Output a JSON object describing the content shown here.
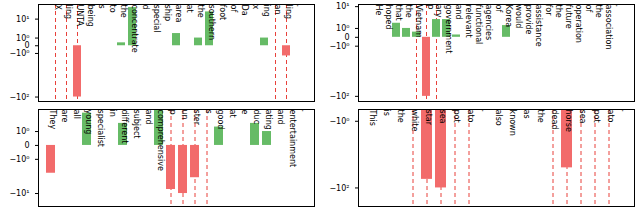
{
  "chart_data": [
    {
      "type": "bar",
      "log": "y",
      "categories": [
        "X",
        "ling",
        "UNTA",
        "being",
        "s",
        "to",
        "the",
        "concentrate",
        "d",
        "special",
        "ship",
        "area",
        "at",
        "the",
        "southern",
        "foot",
        "of",
        "Da",
        "x",
        "ing",
        "an",
        "ling",
        "."
      ],
      "values": [
        0,
        0,
        -100,
        0,
        0,
        0,
        0.3,
        30,
        0,
        0,
        0,
        2,
        0,
        1,
        20,
        0,
        0,
        0,
        0,
        1,
        0,
        -1.5,
        0
      ],
      "colors": [
        "#66bb66",
        "#66bb66",
        "#f26b6b",
        "#66bb66",
        "#66bb66",
        "#66bb66",
        "#66bb66",
        "#66bb66",
        "#66bb66",
        "#66bb66",
        "#66bb66",
        "#66bb66",
        "#66bb66",
        "#66bb66",
        "#66bb66",
        "#66bb66",
        "#66bb66",
        "#66bb66",
        "#66bb66",
        "#66bb66",
        "#66bb66",
        "#f26b6b",
        "#66bb66"
      ],
      "marked": [
        true,
        true,
        true,
        false,
        false,
        false,
        false,
        false,
        false,
        false,
        false,
        false,
        false,
        false,
        false,
        false,
        false,
        false,
        false,
        false,
        true,
        true,
        false
      ],
      "ylim": [
        -150,
        40
      ],
      "yticks": [
        {
          "value": -100,
          "label": "−10²"
        },
        {
          "value": -1,
          "label": "−10⁰"
        },
        0,
        {
          "value": 1,
          "label": "10⁰"
        },
        {
          "value": 10,
          "label": "10¹"
        }
      ]
    },
    {
      "type": "bar",
      "log": "y",
      "categories": [
        "He",
        "hoped",
        "that",
        "the",
        "Vietnam",
        "P",
        "ary",
        "government",
        "and",
        "relevant",
        "functional",
        "agencies",
        "of",
        "Korea",
        "would",
        "provide",
        "assistance",
        "for",
        "the",
        "future",
        "operation",
        "of",
        "the",
        "association",
        "."
      ],
      "values": [
        0,
        0,
        2,
        1,
        0.5,
        -100,
        3,
        3,
        0.2,
        0,
        0,
        0,
        0,
        1.5,
        0,
        0,
        0,
        0,
        0,
        0,
        0,
        0,
        0,
        0,
        0
      ],
      "colors": [
        "#66bb66",
        "#66bb66",
        "#66bb66",
        "#66bb66",
        "#66bb66",
        "#f26b6b",
        "#66bb66",
        "#66bb66",
        "#66bb66",
        "#66bb66",
        "#66bb66",
        "#66bb66",
        "#66bb66",
        "#66bb66",
        "#66bb66",
        "#66bb66",
        "#66bb66",
        "#66bb66",
        "#66bb66",
        "#66bb66",
        "#66bb66",
        "#66bb66",
        "#66bb66",
        "#66bb66",
        "#66bb66"
      ],
      "marked": [
        false,
        false,
        false,
        false,
        true,
        true,
        true,
        false,
        false,
        false,
        false,
        false,
        false,
        false,
        false,
        false,
        false,
        false,
        false,
        false,
        false,
        false,
        false,
        false,
        false
      ],
      "ylim": [
        -150,
        12
      ],
      "yticks": [
        {
          "value": -100,
          "label": "−10²"
        },
        {
          "value": -1,
          "label": "−10⁰"
        },
        0,
        {
          "value": 1,
          "label": "10⁰"
        },
        {
          "value": 10,
          "label": "10¹"
        }
      ]
    },
    {
      "type": "bar",
      "log": "y",
      "categories": [
        "They",
        "are",
        "all",
        "young",
        "specialist",
        "in",
        "different",
        "subject",
        "and",
        "comprehensive",
        "p",
        "un",
        "ster",
        "s",
        "good",
        "at",
        "e",
        "duc",
        "ating",
        "and",
        "entertainment",
        "."
      ],
      "values": [
        -3,
        0,
        0,
        4,
        0,
        0,
        2,
        0,
        0,
        5,
        -8,
        -10,
        -4,
        0,
        1.5,
        0,
        0,
        2,
        1,
        0,
        0,
        0
      ],
      "colors": [
        "#f26b6b",
        "#66bb66",
        "#66bb66",
        "#66bb66",
        "#66bb66",
        "#66bb66",
        "#66bb66",
        "#66bb66",
        "#66bb66",
        "#66bb66",
        "#f26b6b",
        "#f26b6b",
        "#f26b6b",
        "#66bb66",
        "#66bb66",
        "#66bb66",
        "#66bb66",
        "#66bb66",
        "#66bb66",
        "#66bb66",
        "#66bb66",
        "#66bb66"
      ],
      "marked": [
        false,
        false,
        false,
        false,
        false,
        false,
        false,
        false,
        false,
        false,
        true,
        true,
        true,
        true,
        false,
        false,
        false,
        false,
        false,
        false,
        false,
        false
      ],
      "ylim": [
        -20,
        5
      ],
      "yticks": [
        {
          "value": -10,
          "label": "−10¹"
        },
        {
          "value": -1,
          "label": "−10⁰"
        },
        0,
        {
          "value": 1,
          "label": "10⁰"
        }
      ]
    },
    {
      "type": "bar",
      "log": "y",
      "categories": [
        "This",
        "is",
        "the",
        "white",
        "star",
        "sea",
        "pot",
        "ato",
        ".",
        "also",
        "known",
        "as",
        "the",
        "dead",
        "horse",
        "sea",
        "pot",
        "ato",
        "."
      ],
      "values": [
        0,
        0,
        0,
        0,
        -60,
        -100,
        0,
        0,
        0,
        0,
        0,
        0,
        0,
        0,
        -30,
        0,
        0,
        0,
        0
      ],
      "colors": [
        "#66bb66",
        "#66bb66",
        "#66bb66",
        "#66bb66",
        "#f26b6b",
        "#f26b6b",
        "#66bb66",
        "#66bb66",
        "#66bb66",
        "#66bb66",
        "#66bb66",
        "#66bb66",
        "#66bb66",
        "#66bb66",
        "#f26b6b",
        "#66bb66",
        "#66bb66",
        "#66bb66",
        "#66bb66"
      ],
      "marked": [
        false,
        false,
        false,
        true,
        true,
        true,
        true,
        true,
        false,
        false,
        false,
        false,
        false,
        true,
        true,
        true,
        true,
        true,
        false
      ],
      "ylim": [
        -300,
        0
      ],
      "yticks": [
        {
          "value": -100,
          "label": "−10²"
        },
        {
          "value": -1,
          "label": "−10⁰"
        }
      ]
    }
  ]
}
